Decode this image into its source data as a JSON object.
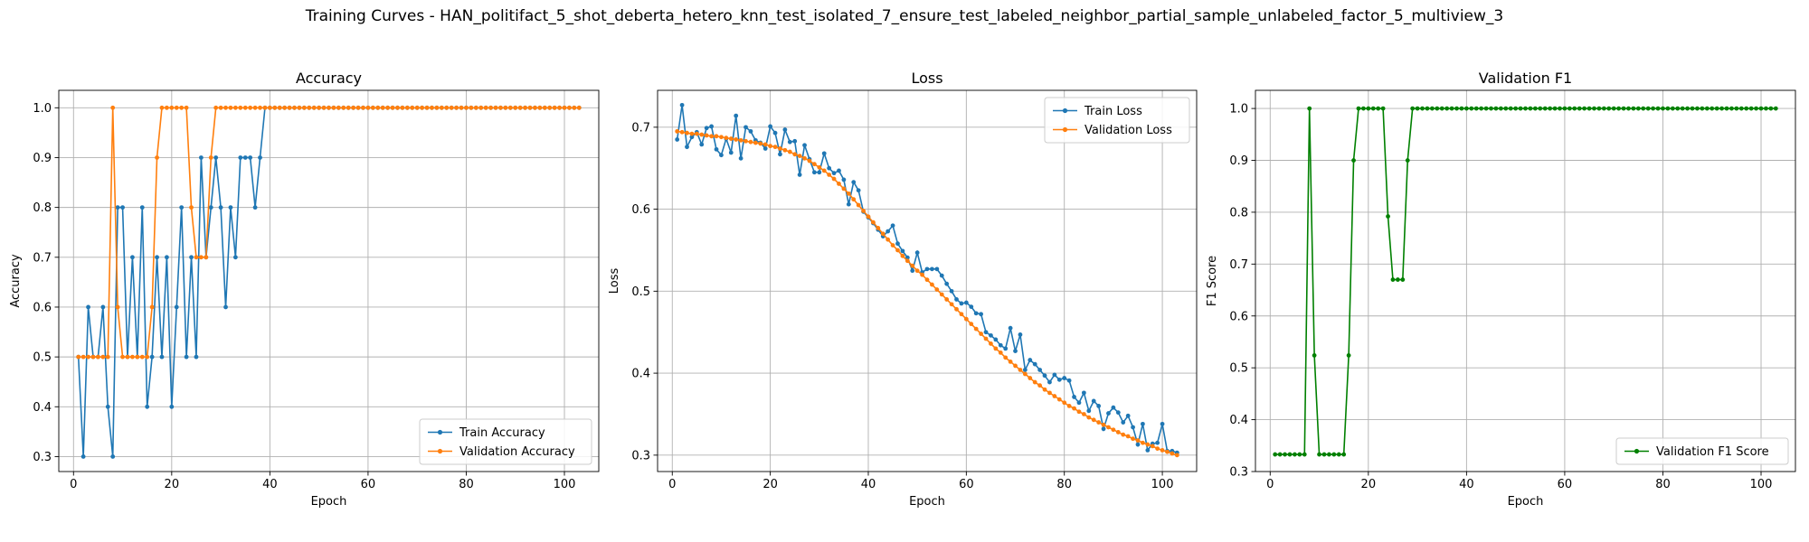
{
  "suptitle": "Training Curves - HAN_politifact_5_shot_deberta_hetero_knn_test_isolated_7_ensure_test_labeled_neighbor_partial_sample_unlabeled_factor_5_multiview_3",
  "colors": {
    "blue": "#1f77b4",
    "orange": "#ff7f0e",
    "green": "#008000",
    "grid": "#b0b0b0"
  },
  "chart_data": [
    {
      "type": "line",
      "title": "Accuracy",
      "xlabel": "Epoch",
      "ylabel": "Accuracy",
      "xlim": [
        -3,
        107
      ],
      "ylim": [
        0.27,
        1.035
      ],
      "xticks": [
        0,
        20,
        40,
        60,
        80,
        100
      ],
      "yticks": [
        0.3,
        0.4,
        0.5,
        0.6,
        0.7,
        0.8,
        0.9,
        1.0
      ],
      "grid": true,
      "legend": "lower right",
      "series": [
        {
          "name": "Train Accuracy",
          "color": "#1f77b4",
          "x_start": 1,
          "values": [
            0.5,
            0.3,
            0.6,
            0.5,
            0.5,
            0.6,
            0.4,
            0.3,
            0.8,
            0.8,
            0.5,
            0.7,
            0.5,
            0.8,
            0.4,
            0.5,
            0.7,
            0.5,
            0.7,
            0.4,
            0.6,
            0.8,
            0.5,
            0.7,
            0.5,
            0.9,
            0.7,
            0.8,
            0.9,
            0.8,
            0.6,
            0.8,
            0.7,
            0.9,
            0.9,
            0.9,
            0.8,
            0.9,
            1.0,
            1.0,
            1.0,
            1.0,
            1.0,
            1.0,
            1.0,
            1.0,
            1.0,
            1.0,
            1.0,
            1.0,
            1.0,
            1.0,
            1.0,
            1.0,
            1.0,
            1.0,
            1.0,
            1.0,
            1.0,
            1.0,
            1.0,
            1.0,
            1.0,
            1.0,
            1.0,
            1.0,
            1.0,
            1.0,
            1.0,
            1.0,
            1.0,
            1.0,
            1.0,
            1.0,
            1.0,
            1.0,
            1.0,
            1.0,
            1.0,
            1.0,
            1.0,
            1.0,
            1.0,
            1.0,
            1.0,
            1.0,
            1.0,
            1.0,
            1.0,
            1.0,
            1.0,
            1.0,
            1.0,
            1.0,
            1.0,
            1.0,
            1.0,
            1.0,
            1.0,
            1.0,
            1.0,
            1.0,
            1.0
          ]
        },
        {
          "name": "Validation Accuracy",
          "color": "#ff7f0e",
          "x_start": 1,
          "values": [
            0.5,
            0.5,
            0.5,
            0.5,
            0.5,
            0.5,
            0.5,
            1.0,
            0.6,
            0.5,
            0.5,
            0.5,
            0.5,
            0.5,
            0.5,
            0.6,
            0.9,
            1.0,
            1.0,
            1.0,
            1.0,
            1.0,
            1.0,
            0.8,
            0.7,
            0.7,
            0.7,
            0.9,
            1.0,
            1.0,
            1.0,
            1.0,
            1.0,
            1.0,
            1.0,
            1.0,
            1.0,
            1.0,
            1.0,
            1.0,
            1.0,
            1.0,
            1.0,
            1.0,
            1.0,
            1.0,
            1.0,
            1.0,
            1.0,
            1.0,
            1.0,
            1.0,
            1.0,
            1.0,
            1.0,
            1.0,
            1.0,
            1.0,
            1.0,
            1.0,
            1.0,
            1.0,
            1.0,
            1.0,
            1.0,
            1.0,
            1.0,
            1.0,
            1.0,
            1.0,
            1.0,
            1.0,
            1.0,
            1.0,
            1.0,
            1.0,
            1.0,
            1.0,
            1.0,
            1.0,
            1.0,
            1.0,
            1.0,
            1.0,
            1.0,
            1.0,
            1.0,
            1.0,
            1.0,
            1.0,
            1.0,
            1.0,
            1.0,
            1.0,
            1.0,
            1.0,
            1.0,
            1.0,
            1.0,
            1.0,
            1.0,
            1.0,
            1.0
          ]
        }
      ]
    },
    {
      "type": "line",
      "title": "Loss",
      "xlabel": "Epoch",
      "ylabel": "Loss",
      "xlim": [
        -3,
        107
      ],
      "ylim": [
        0.28,
        0.745
      ],
      "xticks": [
        0,
        20,
        40,
        60,
        80,
        100
      ],
      "yticks": [
        0.3,
        0.4,
        0.5,
        0.6,
        0.7
      ],
      "grid": true,
      "legend": "upper right",
      "series": [
        {
          "name": "Train Loss",
          "color": "#1f77b4",
          "x_start": 1,
          "values": [
            0.685,
            0.727,
            0.676,
            0.688,
            0.694,
            0.679,
            0.699,
            0.701,
            0.673,
            0.666,
            0.686,
            0.669,
            0.714,
            0.662,
            0.7,
            0.695,
            0.684,
            0.681,
            0.674,
            0.701,
            0.693,
            0.667,
            0.697,
            0.682,
            0.683,
            0.642,
            0.678,
            0.661,
            0.645,
            0.645,
            0.668,
            0.65,
            0.644,
            0.647,
            0.636,
            0.606,
            0.633,
            0.623,
            0.597,
            0.59,
            0.583,
            0.575,
            0.567,
            0.573,
            0.58,
            0.558,
            0.549,
            0.541,
            0.525,
            0.547,
            0.523,
            0.527,
            0.527,
            0.527,
            0.519,
            0.509,
            0.5,
            0.49,
            0.485,
            0.486,
            0.481,
            0.473,
            0.472,
            0.45,
            0.446,
            0.441,
            0.434,
            0.43,
            0.455,
            0.427,
            0.447,
            0.404,
            0.416,
            0.411,
            0.404,
            0.397,
            0.389,
            0.398,
            0.392,
            0.394,
            0.391,
            0.371,
            0.364,
            0.376,
            0.354,
            0.366,
            0.36,
            0.332,
            0.351,
            0.358,
            0.352,
            0.34,
            0.348,
            0.334,
            0.313,
            0.338,
            0.306,
            0.314,
            0.315,
            0.338,
            0.305,
            0.305,
            0.303
          ]
        },
        {
          "name": "Validation Loss",
          "color": "#ff7f0e",
          "x_start": 1,
          "values": [
            0.695,
            0.694,
            0.693,
            0.692,
            0.692,
            0.691,
            0.69,
            0.689,
            0.689,
            0.688,
            0.687,
            0.686,
            0.685,
            0.684,
            0.683,
            0.682,
            0.681,
            0.68,
            0.679,
            0.677,
            0.676,
            0.674,
            0.672,
            0.67,
            0.667,
            0.665,
            0.662,
            0.659,
            0.655,
            0.651,
            0.647,
            0.642,
            0.637,
            0.631,
            0.625,
            0.619,
            0.612,
            0.605,
            0.598,
            0.591,
            0.584,
            0.577,
            0.57,
            0.563,
            0.556,
            0.55,
            0.543,
            0.537,
            0.531,
            0.525,
            0.52,
            0.514,
            0.508,
            0.502,
            0.496,
            0.49,
            0.484,
            0.478,
            0.472,
            0.466,
            0.46,
            0.454,
            0.448,
            0.442,
            0.436,
            0.43,
            0.425,
            0.419,
            0.414,
            0.409,
            0.404,
            0.399,
            0.394,
            0.389,
            0.385,
            0.38,
            0.376,
            0.372,
            0.368,
            0.364,
            0.36,
            0.357,
            0.353,
            0.35,
            0.346,
            0.343,
            0.34,
            0.337,
            0.334,
            0.331,
            0.328,
            0.325,
            0.323,
            0.32,
            0.318,
            0.315,
            0.313,
            0.311,
            0.308,
            0.306,
            0.304,
            0.302,
            0.3
          ]
        }
      ]
    },
    {
      "type": "line",
      "title": "Validation F1",
      "xlabel": "Epoch",
      "ylabel": "F1 Score",
      "xlim": [
        -3,
        107
      ],
      "ylim": [
        0.3,
        1.035
      ],
      "xticks": [
        0,
        20,
        40,
        60,
        80,
        100
      ],
      "yticks": [
        0.3,
        0.4,
        0.5,
        0.6,
        0.7,
        0.8,
        0.9,
        1.0
      ],
      "grid": true,
      "legend": "lower right",
      "series": [
        {
          "name": "Validation F1 Score",
          "color": "#008000",
          "x_start": 1,
          "values": [
            0.333,
            0.333,
            0.333,
            0.333,
            0.333,
            0.333,
            0.333,
            1.0,
            0.524,
            0.333,
            0.333,
            0.333,
            0.333,
            0.333,
            0.333,
            0.524,
            0.9,
            1.0,
            1.0,
            1.0,
            1.0,
            1.0,
            1.0,
            0.792,
            0.67,
            0.67,
            0.67,
            0.9,
            1.0,
            1.0,
            1.0,
            1.0,
            1.0,
            1.0,
            1.0,
            1.0,
            1.0,
            1.0,
            1.0,
            1.0,
            1.0,
            1.0,
            1.0,
            1.0,
            1.0,
            1.0,
            1.0,
            1.0,
            1.0,
            1.0,
            1.0,
            1.0,
            1.0,
            1.0,
            1.0,
            1.0,
            1.0,
            1.0,
            1.0,
            1.0,
            1.0,
            1.0,
            1.0,
            1.0,
            1.0,
            1.0,
            1.0,
            1.0,
            1.0,
            1.0,
            1.0,
            1.0,
            1.0,
            1.0,
            1.0,
            1.0,
            1.0,
            1.0,
            1.0,
            1.0,
            1.0,
            1.0,
            1.0,
            1.0,
            1.0,
            1.0,
            1.0,
            1.0,
            1.0,
            1.0,
            1.0,
            1.0,
            1.0,
            1.0,
            1.0,
            1.0,
            1.0,
            1.0,
            1.0,
            1.0,
            1.0,
            1.0,
            1.0
          ]
        }
      ]
    }
  ]
}
